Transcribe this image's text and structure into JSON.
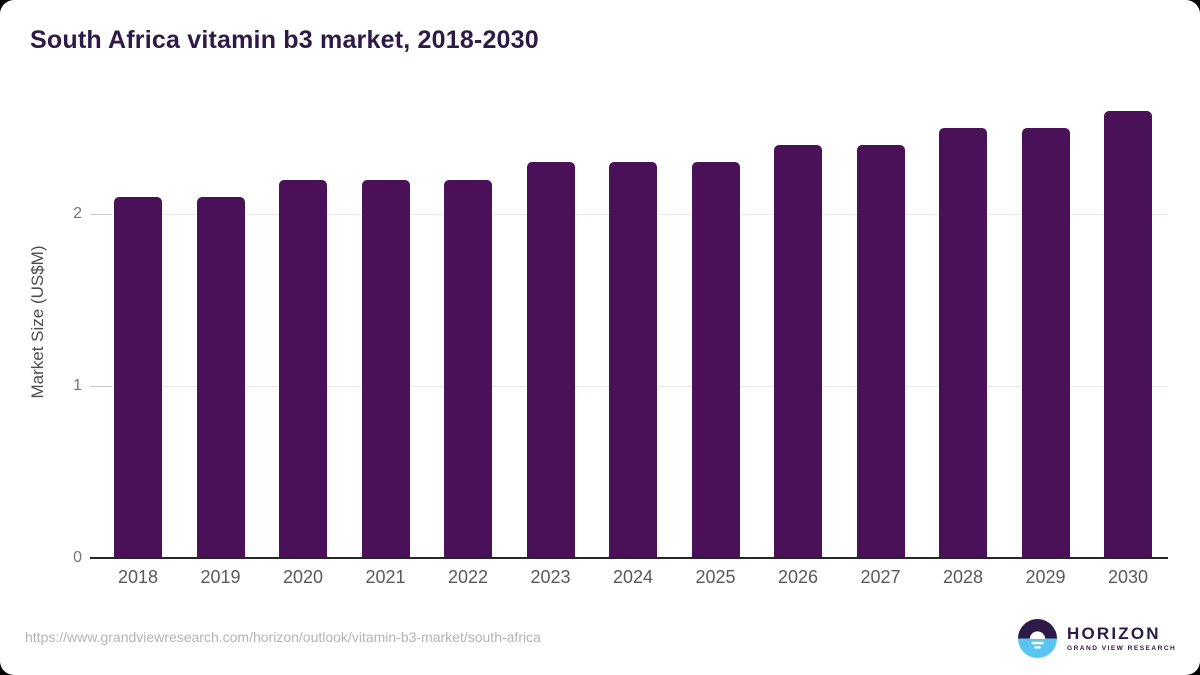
{
  "page": {
    "title": "South Africa vitamin b3 market, 2018-2030",
    "source_url": "https://www.grandviewresearch.com/horizon/outlook/vitamin-b3-market/south-africa"
  },
  "logo": {
    "name": "HORIZON",
    "subtitle": "GRAND VIEW RESEARCH",
    "icon": "sun-over-water-circle-icon"
  },
  "colors": {
    "bar": "#4a1158",
    "title": "#2d1a47",
    "logo-blue": "#5bc5f2",
    "axis": "#262626",
    "axis-title": "#4d4d4d",
    "gridline": "#e9e9e9",
    "tickmark": "#c6c6c6",
    "tick-label": "#767676",
    "x-label": "#595959",
    "url-text": "#b4b4b4"
  },
  "chart_data": {
    "type": "bar",
    "title": "South Africa vitamin b3 market, 2018-2030",
    "categories": [
      "2018",
      "2019",
      "2020",
      "2021",
      "2022",
      "2023",
      "2024",
      "2025",
      "2026",
      "2027",
      "2028",
      "2029",
      "2030"
    ],
    "values": [
      2.1,
      2.1,
      2.2,
      2.2,
      2.2,
      2.3,
      2.3,
      2.3,
      2.4,
      2.4,
      2.5,
      2.5,
      2.6
    ],
    "xlabel": "",
    "ylabel": "Market Size (US$M)",
    "yticks": [
      0,
      1,
      2
    ],
    "ylim": [
      0,
      2.7
    ],
    "grid": "horizontal-only",
    "legend": "none",
    "bar_corner": "rounded-top"
  }
}
